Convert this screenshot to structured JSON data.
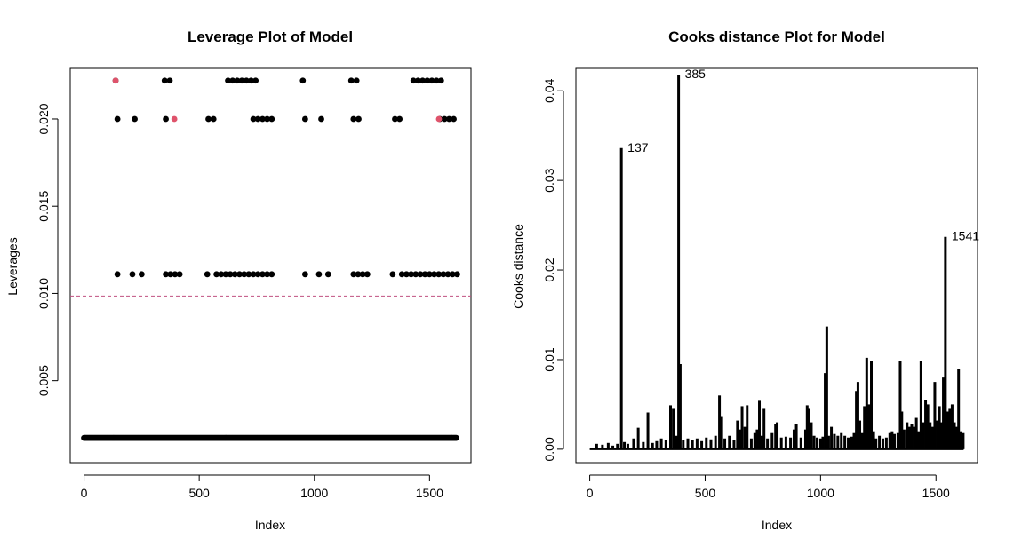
{
  "chart_data": [
    {
      "type": "scatter",
      "title": "Leverage Plot of Model",
      "xlabel": "Index",
      "ylabel": "Leverages",
      "xlim": [
        -60,
        1680
      ],
      "ylim": [
        0.0003,
        0.0229
      ],
      "xticks": [
        0,
        500,
        1000,
        1500
      ],
      "xtick_labels": [
        "0",
        "500",
        "1000",
        "1500"
      ],
      "yticks": [
        0.005,
        0.01,
        0.015,
        0.02
      ],
      "ytick_labels": [
        "0.005",
        "0.010",
        "0.015",
        "0.020"
      ],
      "reference_line": {
        "y": 0.00985,
        "style": "dashed",
        "color": "#C05080"
      },
      "colors": {
        "point": "#000000",
        "highlight": "#DF536B"
      },
      "base_level": {
        "y": 0.00172,
        "x_from": 0,
        "x_to": 1618,
        "step": 4
      },
      "levels": [
        {
          "y": 0.0222,
          "x": [
            137,
            350,
            372,
            625,
            645,
            665,
            685,
            705,
            725,
            745,
            950,
            1160,
            1183,
            1430,
            1450,
            1470,
            1490,
            1510,
            1530,
            1550
          ]
        },
        {
          "y": 0.02,
          "x": [
            145,
            220,
            355,
            540,
            562,
            735,
            755,
            775,
            795,
            815,
            960,
            1030,
            1170,
            1192,
            1350,
            1370,
            1545,
            1565,
            1585,
            1605
          ]
        },
        {
          "y": 0.0111,
          "x": [
            145,
            210,
            250,
            355,
            375,
            395,
            415,
            535,
            575,
            595,
            615,
            635,
            655,
            675,
            695,
            715,
            735,
            755,
            775,
            795,
            815,
            960,
            1020,
            1060,
            1170,
            1190,
            1210,
            1230,
            1340,
            1380,
            1400,
            1420,
            1440,
            1460,
            1480,
            1500,
            1520,
            1540,
            1560,
            1580,
            1600,
            1620
          ]
        }
      ],
      "highlighted": [
        {
          "x": 137,
          "y": 0.0222
        },
        {
          "x": 392,
          "y": 0.02
        },
        {
          "x": 1541,
          "y": 0.02
        }
      ]
    },
    {
      "type": "line",
      "style": "histogram-spikes",
      "title": "Cooks distance Plot for Model",
      "xlabel": "Index",
      "ylabel": "Cooks distance",
      "xlim": [
        -60,
        1680
      ],
      "ylim": [
        -0.0015,
        0.0425
      ],
      "xticks": [
        0,
        500,
        1000,
        1500
      ],
      "xtick_labels": [
        "0",
        "500",
        "1000",
        "1500"
      ],
      "yticks": [
        0,
        0.01,
        0.02,
        0.03,
        0.04
      ],
      "ytick_labels": [
        "0.00",
        "0.01",
        "0.02",
        "0.03",
        "0.04"
      ],
      "colors": {
        "spike": "#000000"
      },
      "spikes": [
        [
          30,
          0.0006
        ],
        [
          55,
          0.0005
        ],
        [
          80,
          0.0007
        ],
        [
          100,
          0.0004
        ],
        [
          120,
          0.0006
        ],
        [
          137,
          0.0336
        ],
        [
          150,
          0.0008
        ],
        [
          165,
          0.0006
        ],
        [
          190,
          0.0012
        ],
        [
          210,
          0.0024
        ],
        [
          232,
          0.0008
        ],
        [
          252,
          0.0041
        ],
        [
          272,
          0.0007
        ],
        [
          290,
          0.0009
        ],
        [
          310,
          0.0012
        ],
        [
          330,
          0.001
        ],
        [
          350,
          0.0049
        ],
        [
          362,
          0.0045
        ],
        [
          375,
          0.0015
        ],
        [
          385,
          0.0418
        ],
        [
          392,
          0.0095
        ],
        [
          405,
          0.001
        ],
        [
          425,
          0.0012
        ],
        [
          445,
          0.001
        ],
        [
          465,
          0.0012
        ],
        [
          485,
          0.0009
        ],
        [
          505,
          0.0013
        ],
        [
          525,
          0.0011
        ],
        [
          545,
          0.0015
        ],
        [
          562,
          0.006
        ],
        [
          568,
          0.0036
        ],
        [
          585,
          0.0012
        ],
        [
          605,
          0.0015
        ],
        [
          625,
          0.001
        ],
        [
          640,
          0.0032
        ],
        [
          652,
          0.0022
        ],
        [
          660,
          0.0048
        ],
        [
          672,
          0.0025
        ],
        [
          682,
          0.0049
        ],
        [
          700,
          0.0012
        ],
        [
          715,
          0.0018
        ],
        [
          725,
          0.0022
        ],
        [
          735,
          0.0054
        ],
        [
          745,
          0.0015
        ],
        [
          755,
          0.0045
        ],
        [
          770,
          0.0012
        ],
        [
          790,
          0.0018
        ],
        [
          805,
          0.0028
        ],
        [
          812,
          0.003
        ],
        [
          830,
          0.0013
        ],
        [
          850,
          0.0014
        ],
        [
          870,
          0.0013
        ],
        [
          885,
          0.0022
        ],
        [
          895,
          0.0028
        ],
        [
          915,
          0.0013
        ],
        [
          935,
          0.0022
        ],
        [
          942,
          0.0049
        ],
        [
          950,
          0.0045
        ],
        [
          960,
          0.003
        ],
        [
          972,
          0.0015
        ],
        [
          985,
          0.0013
        ],
        [
          1000,
          0.0012
        ],
        [
          1010,
          0.0014
        ],
        [
          1020,
          0.0085
        ],
        [
          1027,
          0.0137
        ],
        [
          1035,
          0.0015
        ],
        [
          1047,
          0.0025
        ],
        [
          1060,
          0.0017
        ],
        [
          1075,
          0.0015
        ],
        [
          1090,
          0.0018
        ],
        [
          1105,
          0.0015
        ],
        [
          1120,
          0.0013
        ],
        [
          1135,
          0.0014
        ],
        [
          1145,
          0.0018
        ],
        [
          1155,
          0.0065
        ],
        [
          1162,
          0.0075
        ],
        [
          1170,
          0.0032
        ],
        [
          1180,
          0.0018
        ],
        [
          1190,
          0.0048
        ],
        [
          1200,
          0.0102
        ],
        [
          1210,
          0.005
        ],
        [
          1220,
          0.0098
        ],
        [
          1230,
          0.002
        ],
        [
          1240,
          0.0012
        ],
        [
          1255,
          0.0015
        ],
        [
          1270,
          0.0012
        ],
        [
          1285,
          0.0013
        ],
        [
          1300,
          0.0018
        ],
        [
          1310,
          0.002
        ],
        [
          1320,
          0.0017
        ],
        [
          1335,
          0.0018
        ],
        [
          1345,
          0.0099
        ],
        [
          1352,
          0.0042
        ],
        [
          1362,
          0.0022
        ],
        [
          1375,
          0.003
        ],
        [
          1385,
          0.0025
        ],
        [
          1395,
          0.0028
        ],
        [
          1405,
          0.0025
        ],
        [
          1415,
          0.0035
        ],
        [
          1425,
          0.002
        ],
        [
          1435,
          0.0099
        ],
        [
          1445,
          0.003
        ],
        [
          1455,
          0.0055
        ],
        [
          1465,
          0.005
        ],
        [
          1475,
          0.003
        ],
        [
          1485,
          0.0025
        ],
        [
          1495,
          0.0075
        ],
        [
          1505,
          0.0032
        ],
        [
          1515,
          0.0048
        ],
        [
          1525,
          0.003
        ],
        [
          1532,
          0.008
        ],
        [
          1541,
          0.0237
        ],
        [
          1550,
          0.0042
        ],
        [
          1560,
          0.0045
        ],
        [
          1570,
          0.005
        ],
        [
          1580,
          0.003
        ],
        [
          1590,
          0.0025
        ],
        [
          1598,
          0.009
        ],
        [
          1605,
          0.002
        ],
        [
          1612,
          0.0015
        ],
        [
          1618,
          0.0018
        ]
      ],
      "annotations": [
        {
          "label": "137",
          "x": 137,
          "y": 0.0336
        },
        {
          "label": "385",
          "x": 385,
          "y": 0.0418
        },
        {
          "label": "1541",
          "x": 1541,
          "y": 0.0237
        }
      ]
    }
  ]
}
